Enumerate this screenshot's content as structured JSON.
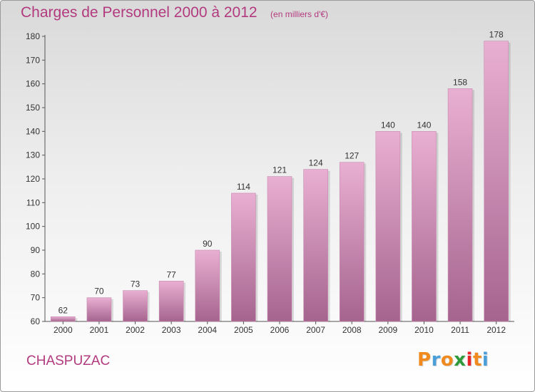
{
  "header": {
    "title": "Charges de Personnel 2000 à 2012",
    "subtitle": "(en milliers d'€)"
  },
  "footer": {
    "commune": "CHASPUZAC",
    "logo_text": "Proxiti"
  },
  "colors": {
    "title": "#b23a7e",
    "bar_top": "#e9afd2",
    "bar_bottom": "#a5648e",
    "logo_letters": [
      "#f08a1e",
      "#4a9fd8",
      "#f08a1e",
      "#2e9a3a",
      "#e8262a",
      "#f08a1e",
      "#4a9fd8"
    ]
  },
  "chart_data": {
    "type": "bar",
    "title": "Charges de Personnel 2000 à 2012",
    "subtitle": "(en milliers d'€)",
    "categories": [
      "2000",
      "2001",
      "2002",
      "2003",
      "2004",
      "2005",
      "2006",
      "2007",
      "2008",
      "2009",
      "2010",
      "2011",
      "2012"
    ],
    "values": [
      62,
      70,
      73,
      77,
      90,
      114,
      121,
      124,
      127,
      140,
      140,
      158,
      178
    ],
    "ylim": [
      60,
      180
    ],
    "yticks": [
      60,
      70,
      80,
      90,
      100,
      110,
      120,
      130,
      140,
      150,
      160,
      170,
      180
    ],
    "grid": false,
    "data_labels": true
  }
}
